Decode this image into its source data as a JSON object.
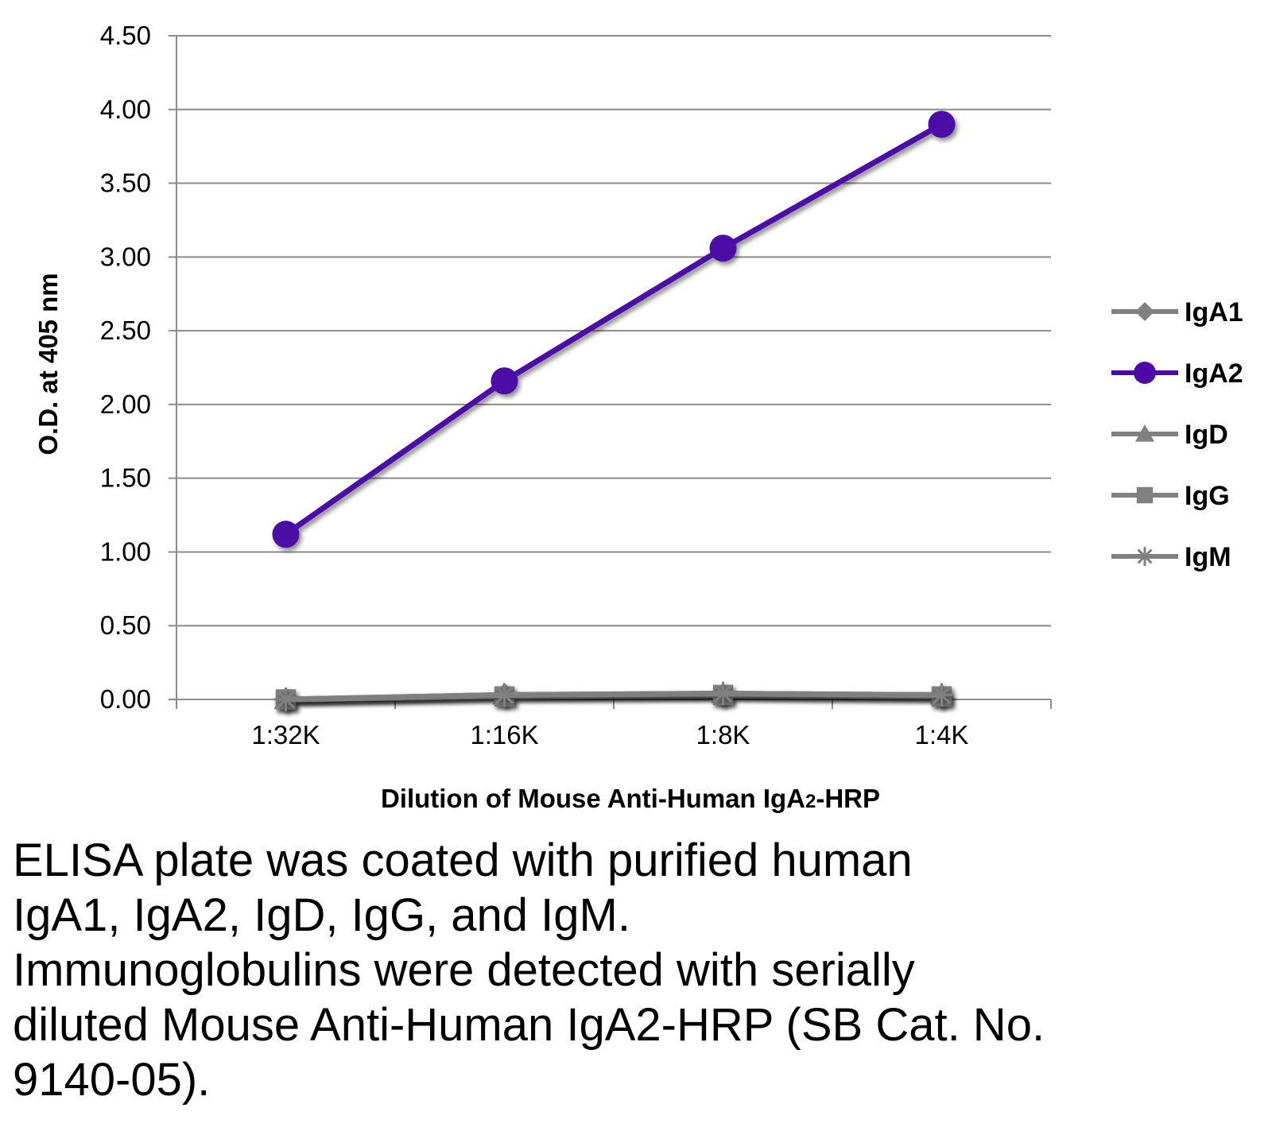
{
  "chart_data": {
    "type": "line",
    "title": "",
    "xlabel": "Dilution of Mouse Anti-Human IgA2-HRP",
    "xlabel_parts": {
      "main": "Dilution of Mouse Anti-Human IgA",
      "subscript": "2",
      "suffix": "-HRP"
    },
    "ylabel": "O.D. at 405 nm",
    "categories": [
      "1:32K",
      "1:16K",
      "1:8K",
      "1:4K"
    ],
    "ylim": [
      0,
      4.5
    ],
    "yticks": [
      "0.00",
      "0.50",
      "1.00",
      "1.50",
      "2.00",
      "2.50",
      "3.00",
      "3.50",
      "4.00",
      "4.50"
    ],
    "grid": true,
    "legend_position": "right",
    "series": [
      {
        "name": "IgA1",
        "values": [
          0.0,
          0.03,
          0.03,
          0.02
        ],
        "color": "#808080",
        "marker": "diamond"
      },
      {
        "name": "IgA2",
        "values": [
          1.12,
          2.16,
          3.06,
          3.9
        ],
        "color": "#4b0aa6",
        "marker": "circle"
      },
      {
        "name": "IgD",
        "values": [
          0.0,
          0.03,
          0.04,
          0.03
        ],
        "color": "#808080",
        "marker": "triangle"
      },
      {
        "name": "IgG",
        "values": [
          0.0,
          0.02,
          0.03,
          0.02
        ],
        "color": "#808080",
        "marker": "square"
      },
      {
        "name": "IgM",
        "values": [
          0.0,
          0.03,
          0.04,
          0.03
        ],
        "color": "#808080",
        "marker": "star"
      }
    ]
  },
  "caption": {
    "lines": [
      "ELISA plate was coated with purified human",
      "IgA1, IgA2, IgD, IgG, and IgM.",
      "Immunoglobulins were detected with serially",
      "diluted Mouse Anti-Human IgA2-HRP (SB Cat. No.",
      "9140-05)."
    ]
  }
}
